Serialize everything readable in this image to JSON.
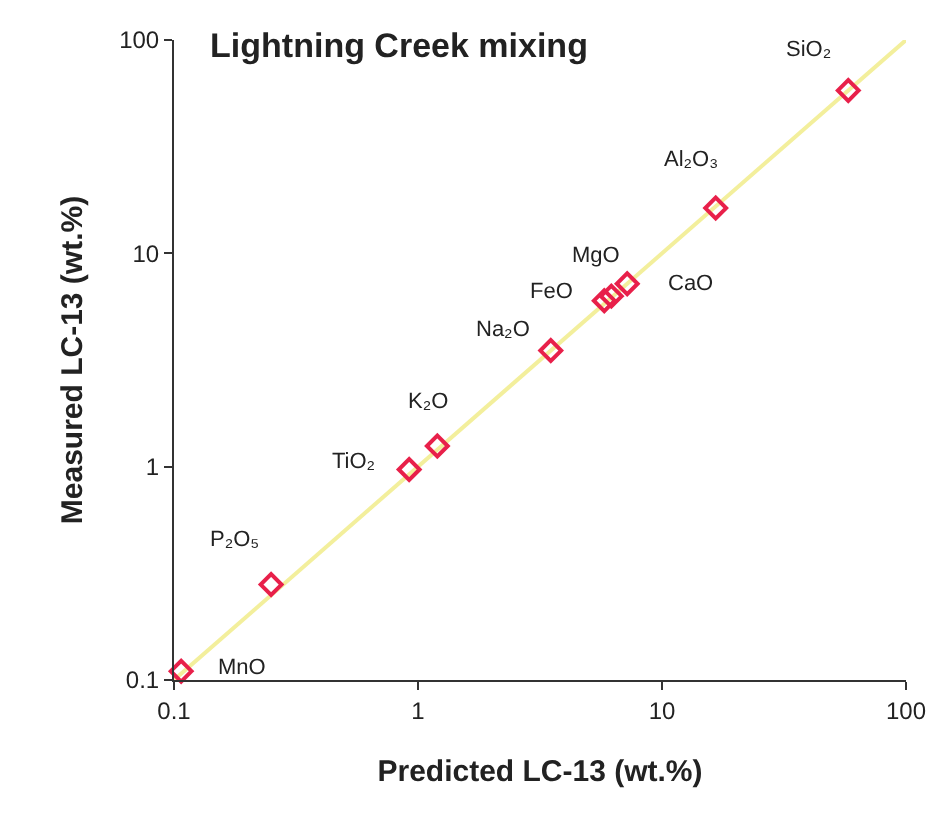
{
  "chart_data": {
    "type": "scatter",
    "title": "Lightning Creek mixing",
    "xlabel": "Predicted LC-13 (wt.%)",
    "ylabel": "Measured LC-13 (wt.%)",
    "log": "xy",
    "grid": false,
    "legend": false,
    "xlim": [
      0.1,
      100
    ],
    "ylim": [
      0.1,
      100
    ],
    "xticks": [
      {
        "value": 0.1,
        "label": "0.1"
      },
      1,
      10,
      100
    ],
    "yticks": [
      {
        "value": 0.1,
        "label": "0.1"
      },
      1,
      10,
      100
    ],
    "series": [
      {
        "type": "line",
        "color": "#f3ef9c",
        "marker": "none",
        "x": [
          0.1,
          100
        ],
        "values": [
          0.1,
          100
        ]
      },
      {
        "color": "#e8204a",
        "marker": "diamond",
        "x": [
          58,
          16.6,
          7.2,
          6.2,
          5.8,
          3.5,
          1.2,
          0.92,
          0.25,
          0.107
        ],
        "values": [
          58,
          16.3,
          7.2,
          6.3,
          6.0,
          3.5,
          1.25,
          0.97,
          0.28,
          0.11
        ]
      }
    ],
    "annotations": [
      {
        "text": "SiO₂",
        "x": 58,
        "y": 58
      },
      {
        "text": "Al₂O₃",
        "x": 16.6,
        "y": 16.3
      },
      {
        "text": "MgO",
        "x": 6.2,
        "y": 6.3
      },
      {
        "text": "FeO",
        "x": 5.8,
        "y": 6.0
      },
      {
        "text": "CaO",
        "x": 7.2,
        "y": 7.2
      },
      {
        "text": "Na₂O",
        "x": 3.5,
        "y": 3.5
      },
      {
        "text": "K₂O",
        "x": 1.2,
        "y": 1.25
      },
      {
        "text": "TiO₂",
        "x": 0.92,
        "y": 0.97
      },
      {
        "text": "P₂O₅",
        "x": 0.25,
        "y": 0.28
      },
      {
        "text": "MnO",
        "x": 0.107,
        "y": 0.11
      }
    ]
  }
}
